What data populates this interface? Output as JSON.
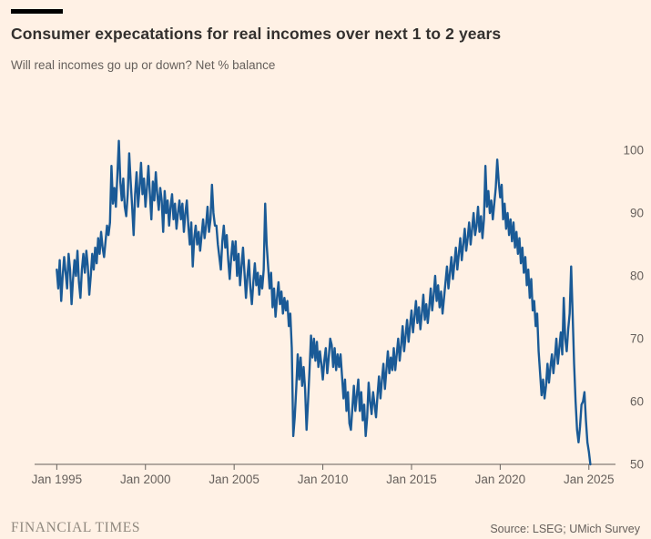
{
  "header": {
    "title": "Consumer expecatations for real incomes over next 1 to 2 years",
    "subtitle": "Will real incomes go up or down? Net % balance"
  },
  "footer": {
    "brand": "FINANCIAL TIMES",
    "source": "Source: LSEG; UMich Survey"
  },
  "colors": {
    "background": "#FFF1E5",
    "line": "#1A5A96",
    "axis": "#66605C",
    "title_text": "#33302E",
    "muted_text": "#66605C"
  },
  "chart_data": {
    "type": "line",
    "title": "Consumer expecatations for real incomes over next 1 to 2 years",
    "subtitle": "Will real incomes go up or down? Net % balance",
    "xlabel": "",
    "ylabel": "",
    "grid": false,
    "legend": "none",
    "x_ticks": [
      {
        "year": 1995,
        "label": "Jan 1995"
      },
      {
        "year": 2000,
        "label": "Jan 2000"
      },
      {
        "year": 2005,
        "label": "Jan 2005"
      },
      {
        "year": 2010,
        "label": "Jan 2010"
      },
      {
        "year": 2015,
        "label": "Jan 2015"
      },
      {
        "year": 2020,
        "label": "Jan 2020"
      },
      {
        "year": 2025,
        "label": "Jan 2025"
      }
    ],
    "y_ticks": [
      50,
      60,
      70,
      80,
      90,
      100
    ],
    "ylim": [
      50,
      103
    ],
    "xlim": [
      1993.75,
      2026.5
    ],
    "series": [
      {
        "name": "Net % balance",
        "frequency": "monthly",
        "start_year": 1995,
        "step_years": 0.0833333,
        "values": [
          81,
          78,
          82.5,
          76,
          80,
          83,
          80.5,
          78,
          83.5,
          81,
          75.5,
          79.5,
          82.5,
          80,
          84,
          79,
          76.5,
          81,
          83.5,
          80.5,
          84,
          81.5,
          77,
          80,
          83.5,
          81,
          84.5,
          82,
          86,
          83.5,
          87,
          84.5,
          83,
          85.5,
          88,
          86.5,
          88.5,
          97.5,
          91.5,
          94,
          91,
          96,
          101.5,
          95,
          92,
          95.5,
          91,
          89.5,
          93,
          99.5,
          95,
          91,
          86.5,
          93,
          96.5,
          91,
          94,
          98,
          93,
          95.5,
          91,
          94,
          97.5,
          93,
          89,
          95,
          92,
          96.5,
          93,
          90.5,
          94,
          92,
          87,
          93.5,
          90,
          92,
          88,
          91,
          93,
          89,
          91.5,
          87.5,
          90,
          92,
          89,
          91.5,
          87,
          90,
          92,
          88,
          85,
          88.5,
          81.5,
          86,
          88,
          85,
          87,
          84,
          86.5,
          89,
          86,
          88,
          91,
          87,
          89,
          94.5,
          90,
          88,
          88,
          85,
          83,
          81,
          85.5,
          88,
          84.5,
          86.5,
          82.5,
          79.5,
          83,
          85.5,
          82.5,
          85.5,
          80,
          83.5,
          78.5,
          81.5,
          84.5,
          80.5,
          76.5,
          80,
          82.5,
          78,
          75.5,
          79,
          82,
          78.5,
          80.5,
          77,
          80,
          78,
          81,
          91.5,
          85,
          81.5,
          78,
          80.5,
          75,
          78,
          73.5,
          76.5,
          79,
          75.5,
          77.5,
          74,
          76.5,
          74.5,
          76,
          72,
          74,
          68.5,
          54.5,
          57.5,
          62,
          67.5,
          63.5,
          67,
          62.5,
          65.5,
          62,
          55.5,
          60,
          65,
          70.5,
          67,
          70,
          66.5,
          69.5,
          65.5,
          68,
          66,
          63.5,
          66.5,
          68.5,
          64.5,
          67,
          70,
          69,
          65.5,
          68.5,
          65,
          67.5,
          65.5,
          67.5,
          64,
          60.5,
          63.5,
          58.5,
          61.5,
          56.5,
          55.5,
          59,
          62.5,
          58.5,
          61,
          63.5,
          58.5,
          61.5,
          57,
          59.5,
          54.5,
          57.5,
          63,
          60,
          58,
          61.5,
          59.5,
          57.5,
          61,
          64,
          60.5,
          63.5,
          66,
          62,
          65,
          68,
          64.5,
          67,
          65,
          68.5,
          65,
          67.5,
          70,
          66.5,
          69,
          72,
          68,
          70.5,
          73,
          69.5,
          72,
          74.5,
          71,
          73.5,
          76,
          72.5,
          75,
          71.5,
          74,
          77,
          73,
          75.5,
          72.5,
          75,
          78,
          74.5,
          77,
          80,
          76,
          78.5,
          75,
          77.5,
          74,
          76.5,
          79,
          81.5,
          78,
          80.5,
          83,
          79.5,
          82,
          84.5,
          81,
          83.5,
          86,
          82.5,
          85,
          87.5,
          84,
          86,
          88.5,
          85,
          87.5,
          90,
          86.5,
          88,
          91,
          87,
          89.5,
          86,
          89,
          97.5,
          91,
          93.5,
          90,
          92,
          89,
          91.5,
          94,
          98.5,
          95,
          92.5,
          94.5,
          89,
          91.5,
          87.5,
          90,
          86.5,
          89,
          85.5,
          88.5,
          84.5,
          87,
          83.5,
          86,
          82,
          84.5,
          80.5,
          83,
          78.5,
          81,
          76.5,
          79.5,
          74.5,
          76,
          72,
          74,
          68,
          64.5,
          61,
          63.5,
          60.5,
          62.5,
          66,
          63,
          65.5,
          67.5,
          64.5,
          67,
          70,
          66,
          68.5,
          71,
          67.5,
          76.5,
          70,
          68,
          71.5,
          74,
          81.5,
          74,
          66,
          60,
          55.5,
          53.5,
          56,
          59.5,
          60,
          61.5,
          57,
          53.5,
          52,
          50
        ]
      }
    ]
  }
}
